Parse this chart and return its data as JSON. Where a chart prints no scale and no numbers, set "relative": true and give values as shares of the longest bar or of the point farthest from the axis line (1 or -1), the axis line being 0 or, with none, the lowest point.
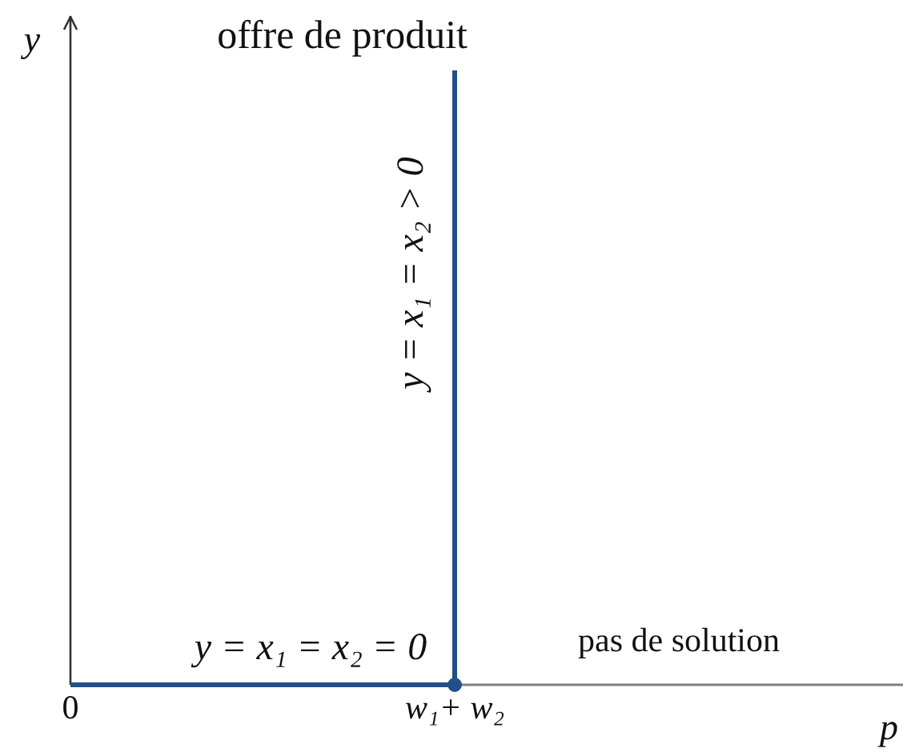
{
  "chart_data": {
    "type": "line",
    "xlabel": "p",
    "ylabel": "y",
    "relative": true,
    "categories": [
      "0",
      "w₁+ w₂",
      null
    ],
    "marker": "none",
    "series": [
      {
        "color": "#23508a",
        "x": [
          "0",
          "w₁+ w₂",
          "w₁+ w₂"
        ],
        "values": [
          0,
          0,
          1
        ]
      },
      {
        "type": "scatter",
        "color": "#23508a",
        "x": [
          "w₁+ w₂"
        ],
        "values": [
          0
        ],
        "marker": "circle"
      }
    ],
    "annotations": [
      {
        "text": "offre de produit",
        "x": "w₁+ w₂",
        "y": 1
      },
      {
        "text": "y = x₁ = x₂ > 0",
        "x": "w₁+ w₂",
        "y": 0.67
      },
      {
        "text": "y = x₁ = x₂ = 0",
        "y": 0
      },
      "pas de solution"
    ]
  }
}
